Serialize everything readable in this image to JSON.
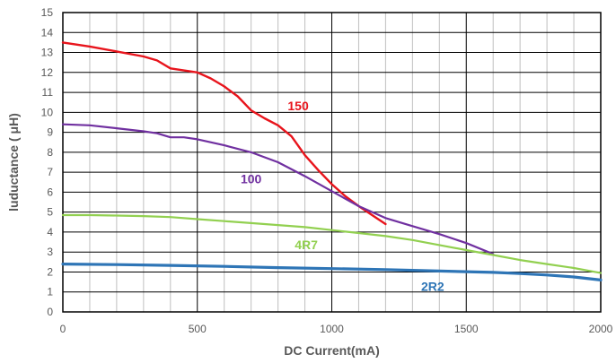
{
  "chart_data": {
    "type": "line",
    "xlabel": "DC Current(mA)",
    "ylabel": "luductance ( μH)",
    "xlim": [
      0,
      2000
    ],
    "ylim": [
      0,
      15
    ],
    "x_major_ticks": [
      0,
      500,
      1000,
      1500,
      2000
    ],
    "x_minor_step": 100,
    "y_ticks": [
      0,
      1,
      2,
      3,
      4,
      5,
      6,
      7,
      8,
      9,
      10,
      11,
      12,
      13,
      14,
      15
    ],
    "grid": true,
    "legend": "inline labels",
    "series": [
      {
        "name": "150",
        "color": "#e8141c",
        "x": [
          0,
          100,
          200,
          300,
          350,
          400,
          450,
          500,
          550,
          600,
          650,
          700,
          750,
          800,
          850,
          900,
          950,
          1000,
          1050,
          1100,
          1150,
          1200
        ],
        "y": [
          13.5,
          13.3,
          13.05,
          12.8,
          12.6,
          12.2,
          12.1,
          12.0,
          11.7,
          11.3,
          10.8,
          10.1,
          9.7,
          9.35,
          8.8,
          7.85,
          7.1,
          6.4,
          5.8,
          5.3,
          4.85,
          4.4
        ]
      },
      {
        "name": "100",
        "color": "#7030a0",
        "x": [
          0,
          100,
          200,
          300,
          350,
          400,
          450,
          500,
          600,
          700,
          800,
          900,
          1000,
          1100,
          1200,
          1300,
          1400,
          1500,
          1600
        ],
        "y": [
          9.4,
          9.35,
          9.2,
          9.05,
          8.95,
          8.75,
          8.75,
          8.65,
          8.35,
          8.0,
          7.5,
          6.8,
          6.05,
          5.3,
          4.7,
          4.3,
          3.9,
          3.45,
          2.9
        ]
      },
      {
        "name": "4R7",
        "color": "#92d050",
        "x": [
          0,
          100,
          200,
          300,
          400,
          500,
          600,
          700,
          800,
          900,
          1000,
          1100,
          1200,
          1300,
          1400,
          1500,
          1600,
          1700,
          1800,
          1900,
          2000
        ],
        "y": [
          4.85,
          4.85,
          4.83,
          4.8,
          4.75,
          4.65,
          4.55,
          4.45,
          4.35,
          4.25,
          4.1,
          3.95,
          3.8,
          3.6,
          3.35,
          3.1,
          2.85,
          2.6,
          2.4,
          2.2,
          1.95
        ]
      },
      {
        "name": "2R2",
        "color": "#2e75b6",
        "x": [
          0,
          200,
          400,
          600,
          800,
          1000,
          1200,
          1400,
          1600,
          1700,
          1800,
          1900,
          2000
        ],
        "y": [
          2.4,
          2.37,
          2.33,
          2.28,
          2.22,
          2.17,
          2.12,
          2.05,
          1.98,
          1.92,
          1.85,
          1.75,
          1.6
        ]
      }
    ]
  }
}
